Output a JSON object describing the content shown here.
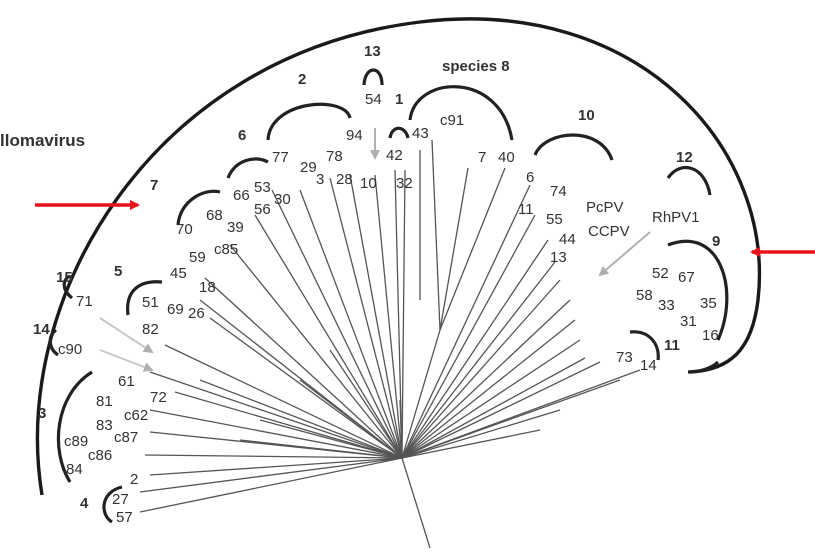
{
  "diagram": {
    "genus_label": "llomavirus",
    "species_label": "species 8",
    "group_numbers": {
      "g13": "13",
      "g2": "2",
      "g1": "1",
      "g6": "6",
      "g7": "7",
      "g10": "10",
      "g12": "12",
      "g9": "9",
      "g15": "15",
      "g5": "5",
      "g14": "14",
      "g3": "3",
      "g4": "4",
      "g11": "11"
    },
    "leaf_labels": {
      "l54": "54",
      "l94": "94",
      "l43": "43",
      "l42": "42",
      "l32": "32",
      "lc91": "c91",
      "l7": "7",
      "l40": "40",
      "l77": "77",
      "l29": "29",
      "l3": "3",
      "l78": "78",
      "l28": "28",
      "l10": "10",
      "l66": "66",
      "l53": "53",
      "l56": "56",
      "l30": "30",
      "l68": "68",
      "l39": "39",
      "l70": "70",
      "l59": "59",
      "lc85": "c85",
      "l45": "45",
      "l18": "18",
      "l51": "51",
      "l69": "69",
      "l26": "26",
      "l82": "82",
      "l71": "71",
      "lc90": "c90",
      "l61": "61",
      "l81": "81",
      "l72": "72",
      "lc62": "c62",
      "l83": "83",
      "lc89": "c89",
      "lc87": "c87",
      "lc86": "c86",
      "l84": "84",
      "l2": "2",
      "l27": "27",
      "l57": "57",
      "l6": "6",
      "l74": "74",
      "l11": "11",
      "l55": "55",
      "l44": "44",
      "l13": "13",
      "lpcpv": "PcPV",
      "lccpv": "CCPV",
      "lrhpv1": "RhPV1",
      "l52": "52",
      "l67": "67",
      "l58": "58",
      "l33": "33",
      "l35": "35",
      "l31": "31",
      "l16": "16",
      "l73": "73",
      "l14": "14"
    },
    "colors": {
      "arrow": "#e8141b",
      "line": "#555555",
      "pointer": "#aaaaaa"
    }
  }
}
